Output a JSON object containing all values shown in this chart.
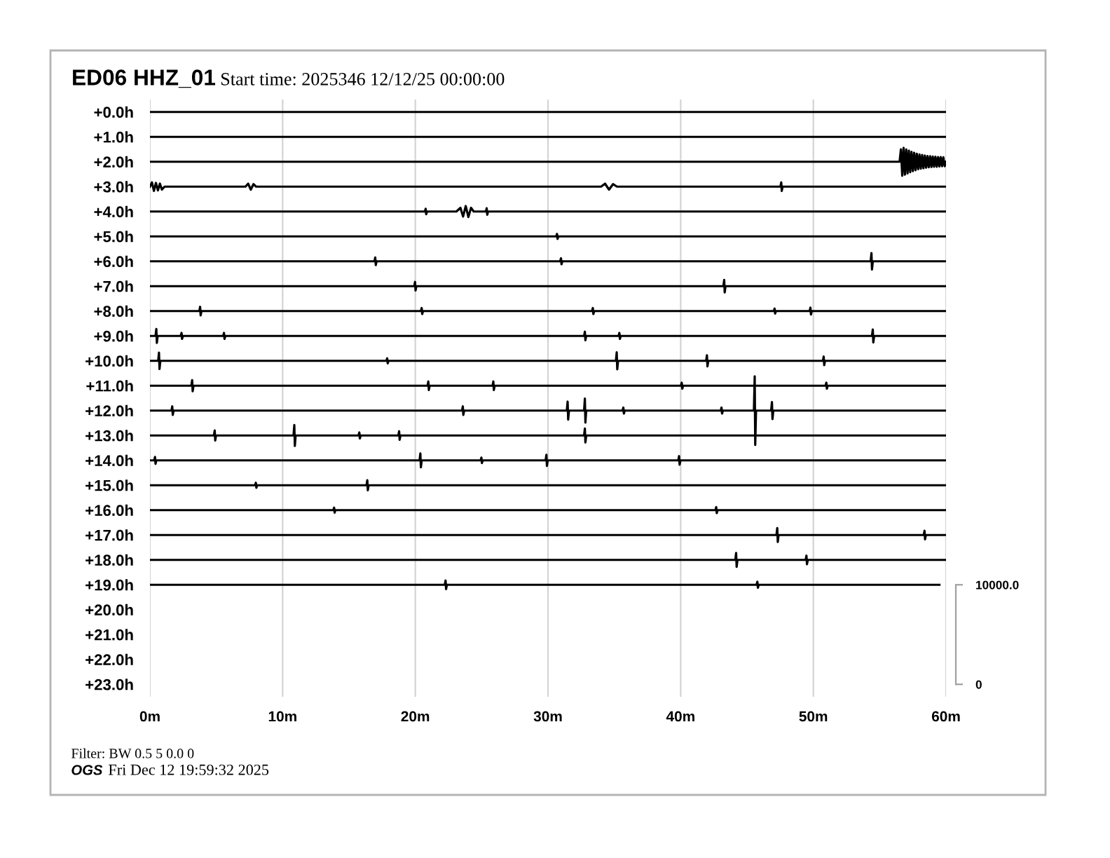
{
  "chart_data": {
    "type": "line",
    "title": "ED06 HHZ_01",
    "subtitle": "Start time: 2025346 12/12/25 00:00:00",
    "annotations": [
      "Filter: BW 0.5 5 0.0 0",
      "OGS",
      "Fri Dec 12 19:59:32 2025"
    ],
    "xlim": [
      0,
      60
    ],
    "xticks": [
      {
        "value": 0,
        "label": "0m"
      },
      {
        "value": 10,
        "label": "10m"
      },
      {
        "value": 20,
        "label": "20m"
      },
      {
        "value": 30,
        "label": "30m"
      },
      {
        "value": 40,
        "label": "40m"
      },
      {
        "value": 50,
        "label": "50m"
      },
      {
        "value": 60,
        "label": "60m"
      }
    ],
    "ylim": [
      23.5,
      -0.5
    ],
    "yticks": [
      {
        "value": 0,
        "label": "+0.0h"
      },
      {
        "value": 1,
        "label": "+1.0h"
      },
      {
        "value": 2,
        "label": "+2.0h"
      },
      {
        "value": 3,
        "label": "+3.0h"
      },
      {
        "value": 4,
        "label": "+4.0h"
      },
      {
        "value": 5,
        "label": "+5.0h"
      },
      {
        "value": 6,
        "label": "+6.0h"
      },
      {
        "value": 7,
        "label": "+7.0h"
      },
      {
        "value": 8,
        "label": "+8.0h"
      },
      {
        "value": 9,
        "label": "+9.0h"
      },
      {
        "value": 10,
        "label": "+10.0h"
      },
      {
        "value": 11,
        "label": "+11.0h"
      },
      {
        "value": 12,
        "label": "+12.0h"
      },
      {
        "value": 13,
        "label": "+13.0h"
      },
      {
        "value": 14,
        "label": "+14.0h"
      },
      {
        "value": 15,
        "label": "+15.0h"
      },
      {
        "value": 16,
        "label": "+16.0h"
      },
      {
        "value": 17,
        "label": "+17.0h"
      },
      {
        "value": 18,
        "label": "+18.0h"
      },
      {
        "value": 19,
        "label": "+19.0h"
      },
      {
        "value": 20,
        "label": "+20.0h"
      },
      {
        "value": 21,
        "label": "+21.0h"
      },
      {
        "value": 22,
        "label": "+22.0h"
      },
      {
        "value": 23,
        "label": "+23.0h"
      }
    ],
    "y2lim": [
      -1250,
      58750
    ],
    "y2ticks": [
      0,
      {
        "value": 10000,
        "label": "10000.0"
      }
    ],
    "grid": "x",
    "series": [
      {
        "color": "#000000",
        "x": [
          0,
          60
        ],
        "values": [
          0,
          0
        ]
      },
      {
        "color": "#000000",
        "x": [
          0,
          60
        ],
        "values": [
          1,
          1
        ]
      },
      {
        "color": "#000000",
        "x": [
          0,
          56.5,
          56.6,
          56.7,
          56.8,
          56.9,
          57.0,
          57.1,
          57.2,
          57.3,
          57.4,
          57.5,
          57.6,
          57.7,
          57.8,
          57.9,
          58.0,
          58.1,
          58.2,
          58.3,
          58.4,
          58.5,
          58.6,
          58.7,
          58.8,
          58.9,
          59.0,
          59.1,
          59.2,
          59.3,
          59.4,
          59.5,
          59.6,
          59.7,
          59.8,
          59.9,
          60
        ],
        "values": [
          2,
          2,
          1.5,
          2.56,
          1.44,
          2.52,
          1.5,
          2.47,
          1.55,
          2.42,
          1.6,
          2.38,
          1.64,
          2.34,
          1.68,
          2.3,
          1.71,
          2.28,
          1.73,
          2.26,
          1.75,
          2.24,
          1.77,
          2.22,
          1.78,
          2.21,
          1.79,
          2.2,
          1.8,
          2.2,
          1.81,
          2.19,
          1.81,
          2.18,
          1.82,
          2.18,
          2
        ]
      },
      {
        "color": "#000000",
        "x": [
          0,
          0.15,
          0.3,
          0.45,
          0.6,
          0.75,
          0.9,
          1.1,
          7.2,
          7.4,
          7.6,
          7.8,
          8.0,
          34,
          34.3,
          34.6,
          34.9,
          35.2,
          47.52,
          47.58,
          47.62,
          47.68,
          60
        ],
        "values": [
          3,
          2.83,
          3.17,
          2.85,
          3.15,
          2.88,
          3.12,
          3,
          3,
          2.88,
          3.12,
          2.9,
          3,
          3,
          2.88,
          3.12,
          2.9,
          3,
          3,
          2.83,
          3.17,
          3,
          3
        ]
      },
      {
        "color": "#000000",
        "x": [
          0,
          20.72,
          20.78,
          20.82,
          20.88,
          23.1,
          23.4,
          23.6,
          23.8,
          24.0,
          24.2,
          24.4,
          25.32,
          25.38,
          25.42,
          25.48,
          60
        ],
        "values": [
          4,
          4,
          3.89,
          4.11,
          4,
          4,
          3.85,
          4.2,
          3.78,
          4.22,
          3.85,
          4,
          4,
          3.87,
          4.13,
          4,
          4
        ]
      },
      {
        "color": "#000000",
        "x": [
          0,
          30.62,
          30.68,
          30.72,
          30.78,
          60
        ],
        "values": [
          5,
          5,
          4.9,
          5.1,
          5,
          5
        ]
      },
      {
        "color": "#000000",
        "x": [
          0,
          16.92,
          16.98,
          17.02,
          17.08,
          30.92,
          30.98,
          31.02,
          31.08,
          54.32,
          54.38,
          54.42,
          54.48,
          60
        ],
        "values": [
          6,
          6,
          5.85,
          6.15,
          6,
          6,
          5.88,
          6.12,
          6,
          6,
          5.67,
          6.33,
          6,
          6
        ]
      },
      {
        "color": "#000000",
        "x": [
          0,
          19.92,
          19.98,
          20.02,
          20.08,
          43.22,
          43.28,
          43.32,
          43.38,
          60
        ],
        "values": [
          7,
          7,
          6.83,
          7.17,
          7,
          7,
          6.75,
          7.25,
          7,
          7
        ]
      },
      {
        "color": "#000000",
        "x": [
          0,
          3.72,
          3.78,
          3.82,
          3.88,
          20.42,
          20.48,
          20.52,
          20.58,
          33.32,
          33.38,
          33.42,
          33.48,
          47.02,
          47.08,
          47.12,
          47.18,
          49.72,
          49.78,
          49.82,
          49.88,
          60
        ],
        "values": [
          8,
          8,
          7.83,
          8.17,
          8,
          8,
          7.88,
          8.12,
          8,
          8,
          7.88,
          8.12,
          8,
          8,
          7.9,
          8.1,
          8,
          8,
          7.86,
          8.14,
          8,
          8
        ]
      },
      {
        "color": "#000000",
        "x": [
          0,
          0.42,
          0.48,
          0.52,
          0.58,
          2.32,
          2.38,
          2.42,
          2.48,
          5.52,
          5.58,
          5.62,
          5.68,
          32.72,
          32.78,
          32.82,
          32.88,
          35.32,
          35.38,
          35.42,
          35.48,
          54.42,
          54.48,
          54.52,
          54.58,
          60
        ],
        "values": [
          9,
          9,
          8.72,
          9.28,
          9,
          9,
          8.88,
          9.12,
          9,
          9,
          8.88,
          9.12,
          9,
          9,
          8.83,
          9.17,
          9,
          9,
          8.88,
          9.12,
          9,
          9,
          8.74,
          9.26,
          9,
          9
        ]
      },
      {
        "color": "#000000",
        "x": [
          0,
          0.62,
          0.68,
          0.72,
          0.78,
          17.82,
          17.88,
          17.92,
          17.98,
          35.12,
          35.18,
          35.22,
          35.28,
          41.92,
          41.98,
          42.02,
          42.08,
          50.72,
          50.78,
          50.82,
          50.88,
          60
        ],
        "values": [
          10,
          10,
          9.67,
          10.33,
          10,
          10,
          9.9,
          10.1,
          10,
          10,
          9.66,
          10.34,
          10,
          10,
          9.78,
          10.22,
          10,
          10,
          9.83,
          10.17,
          10,
          10
        ]
      },
      {
        "color": "#000000",
        "x": [
          0,
          3.12,
          3.18,
          3.22,
          3.28,
          20.92,
          20.98,
          21.02,
          21.08,
          25.82,
          25.88,
          25.92,
          25.98,
          40.02,
          40.08,
          40.12,
          40.18,
          50.92,
          50.98,
          51.02,
          51.08,
          60
        ],
        "values": [
          11,
          11,
          10.78,
          11.22,
          11,
          11,
          10.83,
          11.17,
          11,
          11,
          10.83,
          11.17,
          11,
          11,
          10.88,
          11.12,
          11,
          11,
          10.88,
          11.12,
          11,
          11
        ]
      },
      {
        "color": "#000000",
        "x": [
          0,
          1.62,
          1.68,
          1.72,
          1.78,
          23.52,
          23.58,
          23.62,
          23.68,
          31.42,
          31.48,
          31.52,
          31.58,
          32.72,
          32.78,
          32.82,
          32.88,
          35.62,
          35.68,
          35.72,
          35.78,
          43.02,
          43.08,
          43.12,
          43.18,
          45.52,
          45.58,
          45.62,
          45.68,
          46.82,
          46.88,
          46.92,
          46.98,
          60
        ],
        "values": [
          12,
          12,
          11.83,
          12.17,
          12,
          12,
          11.83,
          12.17,
          12,
          12,
          11.64,
          12.36,
          12,
          12,
          11.52,
          12.48,
          12,
          12,
          11.88,
          12.12,
          12,
          12,
          11.88,
          12.12,
          12,
          12,
          10.62,
          13.38,
          12,
          12,
          11.66,
          12.34,
          12,
          12
        ]
      },
      {
        "color": "#000000",
        "x": [
          0,
          4.82,
          4.88,
          4.92,
          4.98,
          10.82,
          10.88,
          10.92,
          10.98,
          15.72,
          15.78,
          15.82,
          15.88,
          18.72,
          18.78,
          18.82,
          18.88,
          32.72,
          32.78,
          32.82,
          32.88,
          60
        ],
        "values": [
          13,
          13,
          12.8,
          13.2,
          13,
          13,
          12.58,
          13.42,
          13,
          13,
          12.88,
          13.12,
          13,
          13,
          12.83,
          13.17,
          13,
          13,
          12.72,
          13.28,
          13,
          13
        ]
      },
      {
        "color": "#000000",
        "x": [
          0,
          0.32,
          0.38,
          0.42,
          0.48,
          20.32,
          20.38,
          20.42,
          20.48,
          24.92,
          24.98,
          25.02,
          25.08,
          29.82,
          29.88,
          29.92,
          29.98,
          39.82,
          39.88,
          39.92,
          39.98,
          60
        ],
        "values": [
          14,
          14,
          13.86,
          14.14,
          14,
          14,
          13.72,
          14.28,
          14,
          14,
          13.89,
          14.11,
          14,
          14,
          13.78,
          14.22,
          14,
          14,
          13.83,
          14.17,
          14,
          14
        ]
      },
      {
        "color": "#000000",
        "x": [
          0,
          7.92,
          7.98,
          8.02,
          8.08,
          16.32,
          16.38,
          16.42,
          16.48,
          60
        ],
        "values": [
          15,
          15,
          14.9,
          15.1,
          15,
          15,
          14.8,
          15.2,
          15,
          15
        ]
      },
      {
        "color": "#000000",
        "x": [
          0,
          13.82,
          13.88,
          13.92,
          13.98,
          42.62,
          42.68,
          42.72,
          42.78,
          60
        ],
        "values": [
          16,
          16,
          15.9,
          16.1,
          16,
          16,
          15.88,
          16.12,
          16,
          16
        ]
      },
      {
        "color": "#000000",
        "x": [
          0,
          47.22,
          47.28,
          47.32,
          47.38,
          58.32,
          58.38,
          58.42,
          58.48,
          60
        ],
        "values": [
          17,
          17,
          16.72,
          17.28,
          17,
          17,
          16.83,
          17.17,
          17,
          17
        ]
      },
      {
        "color": "#000000",
        "x": [
          0,
          44.12,
          44.18,
          44.22,
          44.28,
          49.42,
          49.48,
          49.52,
          49.58,
          60
        ],
        "values": [
          18,
          18,
          17.72,
          18.28,
          18,
          18,
          17.83,
          18.17,
          18,
          18
        ]
      },
      {
        "color": "#000000",
        "x": [
          0,
          22.22,
          22.28,
          22.32,
          22.38,
          45.72,
          45.78,
          45.82,
          45.88,
          59.5
        ],
        "values": [
          19,
          19,
          18.83,
          19.17,
          19,
          19,
          18.88,
          19.12,
          19,
          19
        ]
      }
    ]
  }
}
